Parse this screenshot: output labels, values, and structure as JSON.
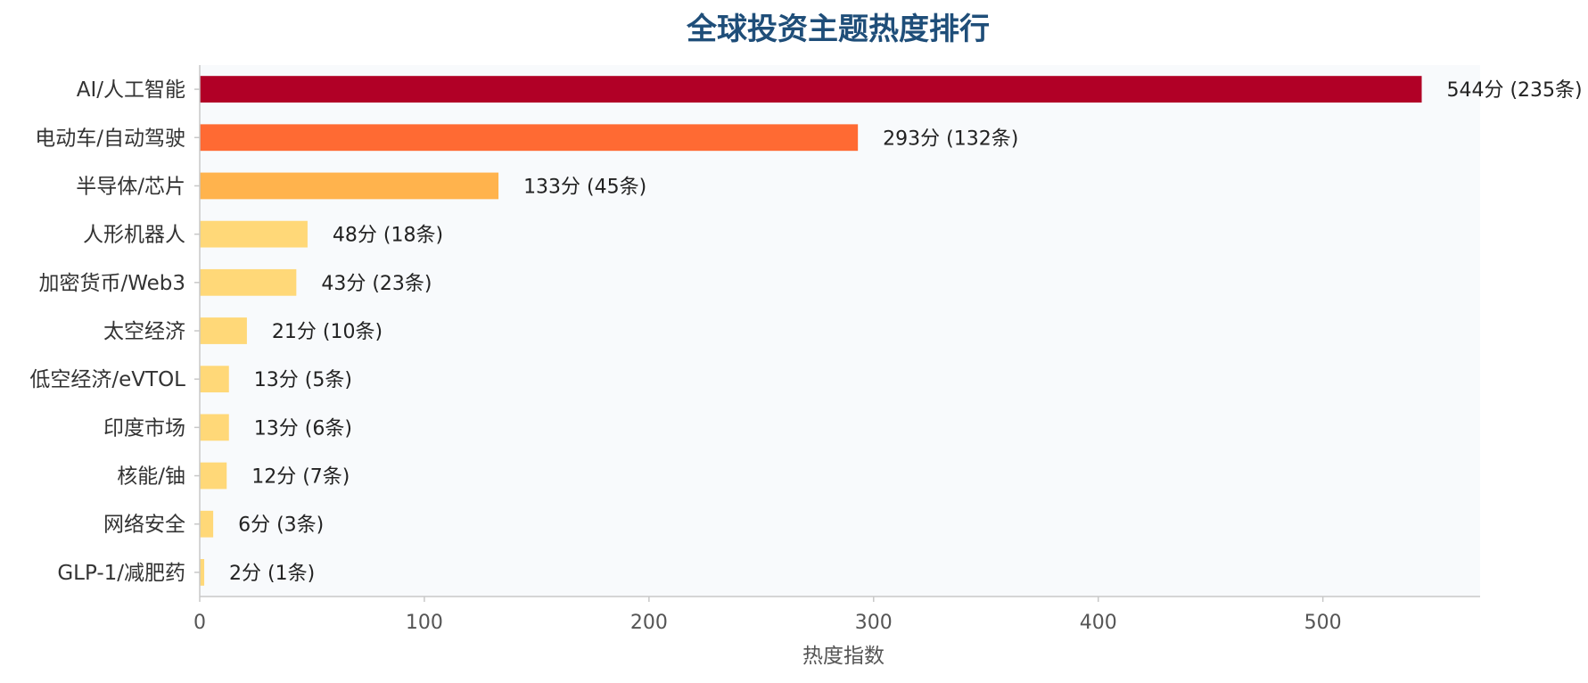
{
  "chart_data": {
    "type": "bar",
    "orientation": "horizontal",
    "title": "全球投资主题热度排行",
    "xlabel": "热度指数",
    "ylabel": "",
    "xlim": [
      0,
      570
    ],
    "xticks": [
      0,
      100,
      200,
      300,
      400,
      500
    ],
    "grid": false,
    "categories": [
      "AI/人工智能",
      "电动车/自动驾驶",
      "半导体/芯片",
      "人形机器人",
      "加密货币/Web3",
      "太空经济",
      "低空经济/eVTOL",
      "印度市场",
      "核能/铀",
      "网络安全",
      "GLP-1/减肥药"
    ],
    "values": [
      544,
      293,
      133,
      48,
      43,
      21,
      13,
      13,
      12,
      6,
      2
    ],
    "data_labels": [
      "544分 (235条)",
      "293分 (132条)",
      "133分 (45条)",
      "48分 (18条)",
      "43分 (23条)",
      "21分 (10条)",
      "13分 (5条)",
      "13分 (6条)",
      "12分 (7条)",
      "6分 (3条)",
      "2分 (1条)"
    ],
    "colors": [
      "#b10026",
      "#ff6a33",
      "#ffb34d",
      "#ffd878",
      "#ffd878",
      "#ffd878",
      "#ffd878",
      "#ffd878",
      "#ffd878",
      "#ffd878",
      "#ffd878"
    ],
    "plot_background": "#f8fafc",
    "axis_color": "#c8c8c8"
  }
}
